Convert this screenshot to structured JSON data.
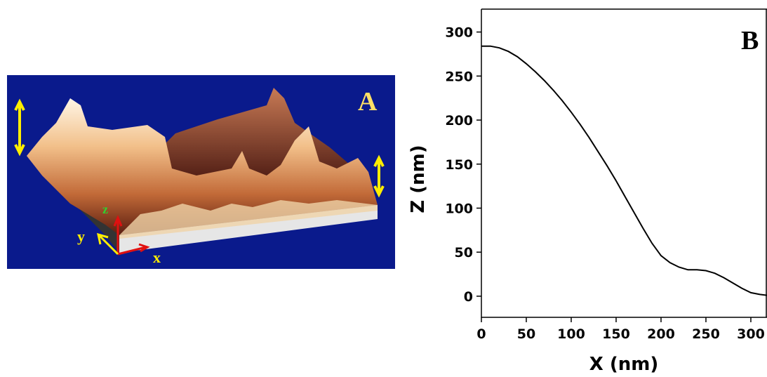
{
  "panel_a": {
    "label": "A",
    "axis_x": "x",
    "axis_y": "y",
    "axis_z": "z"
  },
  "chart_data": {
    "type": "line",
    "panel_label": "B",
    "x_label": "X (nm)",
    "y_label": "Z (nm)",
    "x": [
      0,
      10,
      20,
      30,
      40,
      50,
      60,
      70,
      80,
      90,
      100,
      110,
      120,
      130,
      140,
      150,
      160,
      170,
      180,
      190,
      200,
      210,
      220,
      230,
      240,
      250,
      260,
      270,
      280,
      290,
      300,
      310,
      318
    ],
    "series": [
      {
        "color": "#000000",
        "values": [
          284,
          284,
          282,
          278,
          272,
          264,
          255,
          245,
          234,
          222,
          209,
          195,
          180,
          164,
          148,
          131,
          113,
          95,
          77,
          60,
          46,
          38,
          33,
          30,
          30,
          29,
          26,
          21,
          15,
          9,
          4,
          2,
          1
        ]
      }
    ],
    "xlim": [
      0,
      318
    ],
    "ylim": [
      -24,
      326
    ],
    "xticks": [
      0,
      50,
      100,
      150,
      200,
      250,
      300
    ],
    "yticks": [
      0,
      50,
      100,
      150,
      200,
      250,
      300
    ]
  }
}
